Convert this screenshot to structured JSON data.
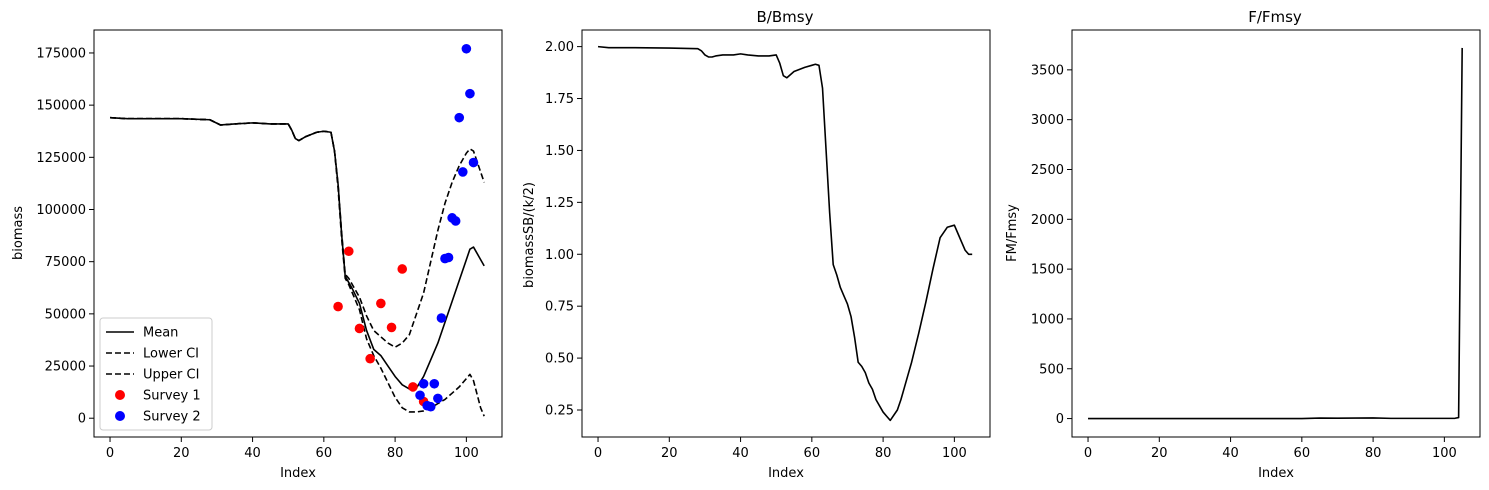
{
  "chart_data": [
    {
      "type": "line",
      "title": "",
      "xlabel": "Index",
      "ylabel": "biomass",
      "xlim": [
        -4.5,
        110
      ],
      "ylim": [
        -9000,
        186000
      ],
      "xticks": [
        0,
        20,
        40,
        60,
        80,
        100
      ],
      "yticks": [
        0,
        25000,
        50000,
        75000,
        100000,
        125000,
        150000,
        175000
      ],
      "legend": {
        "position": "lower-left",
        "entries": [
          "Mean",
          "Lower CI",
          "Upper CI",
          "Survey 1",
          "Survey 2"
        ]
      },
      "grid": false,
      "series": [
        {
          "name": "Mean",
          "kind": "line",
          "style": "solid",
          "color": "#000000",
          "x": [
            0,
            5,
            10,
            20,
            28,
            31,
            35,
            40,
            45,
            50,
            51,
            52,
            53,
            55,
            58,
            60,
            62,
            63,
            64,
            65,
            66,
            67,
            68,
            70,
            72,
            74,
            76,
            78,
            80,
            82,
            84,
            86,
            88,
            90,
            92,
            94,
            96,
            98,
            100,
            101,
            102,
            104,
            105
          ],
          "y": [
            144000,
            143500,
            143500,
            143500,
            143000,
            140500,
            141000,
            141500,
            141000,
            141000,
            138000,
            134000,
            133000,
            135000,
            137000,
            137500,
            137000,
            128000,
            112000,
            88000,
            68000,
            65000,
            62000,
            55000,
            42000,
            33000,
            30000,
            25000,
            20000,
            16000,
            14000,
            14500,
            20000,
            28000,
            36000,
            46000,
            56000,
            66000,
            76000,
            81000,
            82000,
            76000,
            73000
          ]
        },
        {
          "name": "Lower CI",
          "kind": "line",
          "style": "dashed",
          "color": "#000000",
          "x": [
            0,
            5,
            10,
            20,
            28,
            31,
            35,
            40,
            45,
            50,
            51,
            52,
            53,
            55,
            58,
            60,
            62,
            63,
            64,
            65,
            66,
            67,
            68,
            70,
            72,
            74,
            76,
            78,
            80,
            82,
            84,
            86,
            88,
            90,
            92,
            94,
            96,
            98,
            100,
            101,
            102,
            104,
            105
          ],
          "y": [
            144000,
            143500,
            143500,
            143500,
            143000,
            140500,
            141000,
            141500,
            141000,
            141000,
            138000,
            134000,
            133000,
            135000,
            137000,
            137500,
            137000,
            128000,
            110000,
            86000,
            67000,
            64000,
            60000,
            52000,
            38000,
            30000,
            24000,
            17000,
            10000,
            5000,
            3000,
            3000,
            3500,
            5000,
            7000,
            9000,
            12000,
            15000,
            19000,
            21000,
            18000,
            5000,
            1000
          ]
        },
        {
          "name": "Upper CI",
          "kind": "line",
          "style": "dashed",
          "color": "#000000",
          "x": [
            0,
            5,
            10,
            20,
            28,
            31,
            35,
            40,
            45,
            50,
            51,
            52,
            53,
            55,
            58,
            60,
            62,
            63,
            64,
            65,
            66,
            67,
            68,
            70,
            72,
            74,
            76,
            78,
            80,
            82,
            84,
            86,
            88,
            90,
            92,
            94,
            96,
            98,
            100,
            101,
            102,
            104,
            105
          ],
          "y": [
            144000,
            143500,
            143500,
            143500,
            143000,
            140500,
            141000,
            141500,
            141000,
            141000,
            138000,
            134000,
            133000,
            135000,
            137000,
            137500,
            137000,
            128000,
            112000,
            89000,
            69000,
            67000,
            64000,
            58000,
            49000,
            42000,
            39000,
            36000,
            34000,
            36000,
            40000,
            50000,
            60000,
            75000,
            90000,
            103000,
            113000,
            121000,
            127000,
            129000,
            128000,
            118000,
            113000
          ]
        },
        {
          "name": "Survey 1",
          "kind": "scatter",
          "color": "#ff0000",
          "x": [
            64,
            67,
            70,
            73,
            76,
            79,
            82,
            85,
            88
          ],
          "y": [
            53500,
            80000,
            43000,
            28500,
            55000,
            43500,
            71500,
            15000,
            8000
          ]
        },
        {
          "name": "Survey 2",
          "kind": "scatter",
          "color": "#0000ff",
          "x": [
            87,
            88,
            89,
            90,
            91,
            92,
            93,
            94,
            95,
            96,
            97,
            98,
            99,
            100,
            101,
            102
          ],
          "y": [
            11000,
            16500,
            6000,
            5500,
            16500,
            9500,
            48000,
            76500,
            77000,
            96000,
            94500,
            144000,
            118000,
            177000,
            155500,
            122500
          ]
        }
      ]
    },
    {
      "type": "line",
      "title": "B/Bmsy",
      "xlabel": "Index",
      "ylabel": "biomassSB/(k/2)",
      "xlim": [
        -4.5,
        110
      ],
      "ylim": [
        0.12,
        2.08
      ],
      "xticks": [
        0,
        20,
        40,
        60,
        80,
        100
      ],
      "yticks": [
        0.25,
        0.5,
        0.75,
        1.0,
        1.25,
        1.5,
        1.75,
        2.0
      ],
      "ytick_labels": [
        "0.25",
        "0.50",
        "0.75",
        "1.00",
        "1.25",
        "1.50",
        "1.75",
        "2.00"
      ],
      "grid": false,
      "series": [
        {
          "name": "",
          "kind": "line",
          "style": "solid",
          "color": "#000000",
          "x": [
            0,
            3,
            10,
            20,
            28,
            29,
            30,
            31,
            32,
            33,
            35,
            38,
            40,
            42,
            45,
            48,
            50,
            51,
            52,
            53,
            55,
            58,
            60,
            61,
            62,
            63,
            64,
            65,
            66,
            67,
            68,
            69,
            70,
            71,
            72,
            73,
            74,
            75,
            76,
            77,
            78,
            80,
            81,
            82,
            84,
            85,
            86,
            87,
            88,
            90,
            92,
            94,
            96,
            98,
            100,
            101,
            102,
            103,
            104,
            105
          ],
          "y": [
            2.0,
            1.995,
            1.995,
            1.993,
            1.99,
            1.98,
            1.96,
            1.95,
            1.95,
            1.955,
            1.96,
            1.96,
            1.965,
            1.96,
            1.955,
            1.955,
            1.96,
            1.92,
            1.86,
            1.85,
            1.88,
            1.9,
            1.91,
            1.915,
            1.91,
            1.8,
            1.5,
            1.2,
            0.95,
            0.9,
            0.84,
            0.8,
            0.76,
            0.7,
            0.6,
            0.48,
            0.46,
            0.43,
            0.38,
            0.35,
            0.3,
            0.24,
            0.22,
            0.2,
            0.25,
            0.3,
            0.36,
            0.42,
            0.48,
            0.62,
            0.77,
            0.93,
            1.08,
            1.13,
            1.14,
            1.1,
            1.06,
            1.02,
            1.0,
            1.0
          ]
        }
      ]
    },
    {
      "type": "line",
      "title": "F/Fmsy",
      "xlabel": "Index",
      "ylabel": "FM/Fmsy",
      "xlim": [
        -4.5,
        110
      ],
      "ylim": [
        -185,
        3900
      ],
      "xticks": [
        0,
        20,
        40,
        60,
        80,
        100
      ],
      "yticks": [
        0,
        500,
        1000,
        1500,
        2000,
        2500,
        3000,
        3500
      ],
      "grid": false,
      "series": [
        {
          "name": "",
          "kind": "line",
          "style": "solid",
          "color": "#000000",
          "x": [
            0,
            20,
            40,
            60,
            65,
            70,
            80,
            85,
            90,
            100,
            103,
            104,
            105
          ],
          "y": [
            0,
            0,
            0,
            0,
            5,
            4,
            6,
            2,
            2,
            2,
            3,
            10,
            3720
          ]
        }
      ]
    }
  ]
}
